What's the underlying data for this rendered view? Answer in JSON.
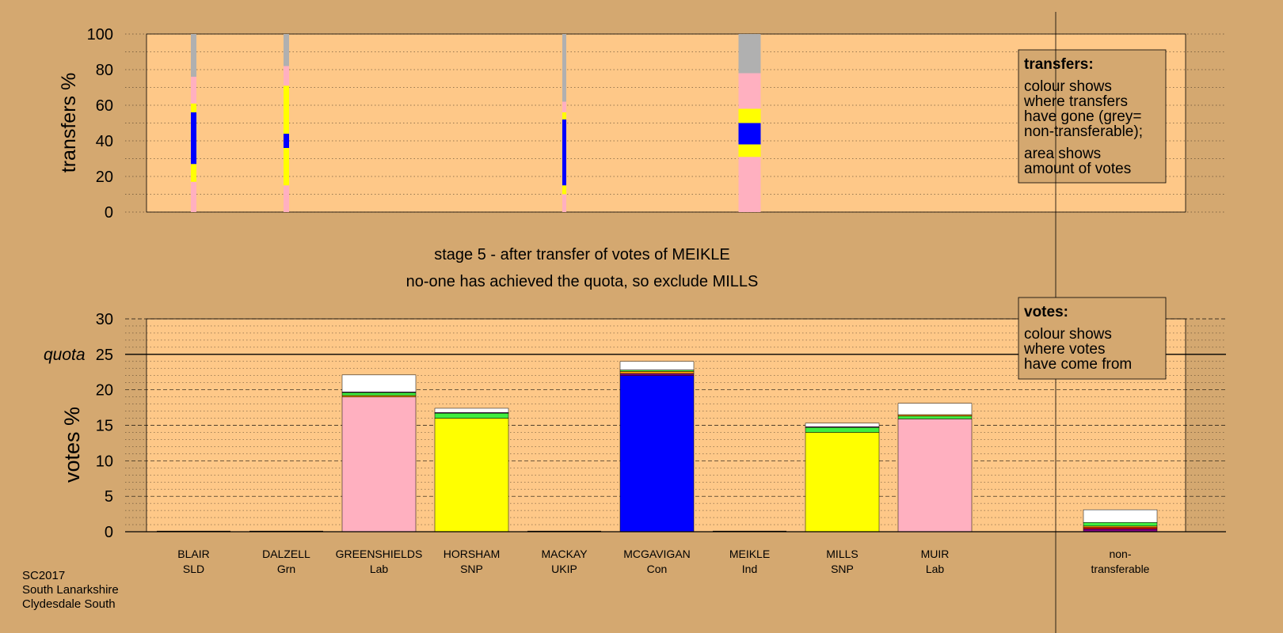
{
  "colors": {
    "background": "#d4a870",
    "panel": "#fec888",
    "legend_box": "#d4a870",
    "SNP": "#ffff00",
    "Lab": "#ffb0c0",
    "Con": "#0000ff",
    "Grn": "#40ee40",
    "SLD": "#ffa000",
    "UKIP": "#800080",
    "Ind": "#ff0000",
    "nontransferable": "#b0b0b0",
    "new_transfer": "#ffffff"
  },
  "chart_data": [
    {
      "type": "bar",
      "id": "transfers",
      "ylabel": "transfers %",
      "ylim": [
        0,
        100
      ],
      "yticks": [
        0,
        20,
        40,
        60,
        80,
        100
      ],
      "grid": true,
      "columns": [
        {
          "candidate": "BLAIR",
          "segments": [
            {
              "color": "Lab",
              "value": 17
            },
            {
              "color": "SNP",
              "value": 10
            },
            {
              "color": "Con",
              "value": 29
            },
            {
              "color": "SNP",
              "value": 5
            },
            {
              "color": "Lab",
              "value": 15
            },
            {
              "color": "nontransferable",
              "value": 24
            }
          ]
        },
        {
          "candidate": "DALZELL",
          "segments": [
            {
              "color": "Lab",
              "value": 15
            },
            {
              "color": "SNP",
              "value": 21
            },
            {
              "color": "Con",
              "value": 8
            },
            {
              "color": "SNP",
              "value": 27
            },
            {
              "color": "Lab",
              "value": 11
            },
            {
              "color": "nontransferable",
              "value": 18
            }
          ]
        },
        {
          "candidate": "MACKAY",
          "segments": [
            {
              "color": "Lab",
              "value": 10
            },
            {
              "color": "SNP",
              "value": 5
            },
            {
              "color": "Con",
              "value": 37
            },
            {
              "color": "SNP",
              "value": 4
            },
            {
              "color": "Lab",
              "value": 6
            },
            {
              "color": "nontransferable",
              "value": 38
            }
          ]
        },
        {
          "candidate": "MEIKLE",
          "segments": [
            {
              "color": "Lab",
              "value": 31
            },
            {
              "color": "SNP",
              "value": 7
            },
            {
              "color": "Con",
              "value": 12
            },
            {
              "color": "SNP",
              "value": 8
            },
            {
              "color": "Lab",
              "value": 20
            },
            {
              "color": "nontransferable",
              "value": 22
            }
          ]
        }
      ],
      "legend": {
        "title": "transfers:",
        "lines1": [
          "colour shows",
          "where transfers",
          "have gone (grey=",
          "non-transferable);"
        ],
        "lines2": [
          "area shows",
          "amount of votes"
        ]
      }
    },
    {
      "type": "bar",
      "id": "votes",
      "ylabel": "votes %",
      "ylim": [
        0,
        30
      ],
      "yticks": [
        0,
        5,
        10,
        15,
        20,
        25,
        30
      ],
      "quota": 25,
      "quota_label": "quota",
      "grid": true,
      "categories": [
        {
          "name": "BLAIR",
          "party": "SLD"
        },
        {
          "name": "DALZELL",
          "party": "Grn"
        },
        {
          "name": "GREENSHIELDS",
          "party": "Lab"
        },
        {
          "name": "HORSHAM",
          "party": "SNP"
        },
        {
          "name": "MACKAY",
          "party": "UKIP"
        },
        {
          "name": "MCGAVIGAN",
          "party": "Con"
        },
        {
          "name": "MEIKLE",
          "party": "Ind"
        },
        {
          "name": "MILLS",
          "party": "SNP"
        },
        {
          "name": "MUIR",
          "party": "Lab"
        },
        {
          "name": "",
          "party": ""
        },
        {
          "name": "non-",
          "party": "transferable"
        }
      ],
      "stacks": [
        [],
        [],
        [
          {
            "color": "Lab",
            "value": 19.0
          },
          {
            "color": "SLD",
            "value": 0.2
          },
          {
            "color": "Grn",
            "value": 0.4
          },
          {
            "color": "UKIP",
            "value": 0.1
          },
          {
            "color": "new_transfer",
            "value": 2.4
          }
        ],
        [
          {
            "color": "SNP",
            "value": 16.0
          },
          {
            "color": "Grn",
            "value": 0.7
          },
          {
            "color": "UKIP",
            "value": 0.1
          },
          {
            "color": "new_transfer",
            "value": 0.6
          }
        ],
        [],
        [
          {
            "color": "Con",
            "value": 22.0
          },
          {
            "color": "UKIP",
            "value": 0.3
          },
          {
            "color": "SLD",
            "value": 0.3
          },
          {
            "color": "Grn",
            "value": 0.2
          },
          {
            "color": "new_transfer",
            "value": 1.2
          }
        ],
        [],
        [
          {
            "color": "SNP",
            "value": 14.0
          },
          {
            "color": "Grn",
            "value": 0.7
          },
          {
            "color": "UKIP",
            "value": 0.1
          },
          {
            "color": "new_transfer",
            "value": 0.5
          }
        ],
        [
          {
            "color": "Lab",
            "value": 15.9
          },
          {
            "color": "Grn",
            "value": 0.4
          },
          {
            "color": "SLD",
            "value": 0.2
          },
          {
            "color": "new_transfer",
            "value": 1.6
          }
        ],
        [],
        [
          {
            "color": "UKIP",
            "value": 0.4
          },
          {
            "color": "Ind",
            "value": 0.2
          },
          {
            "color": "SLD",
            "value": 0.2
          },
          {
            "color": "Grn",
            "value": 0.5
          },
          {
            "color": "new_transfer",
            "value": 1.8
          }
        ]
      ],
      "legend": {
        "title": "votes:",
        "lines": [
          "colour shows",
          "where votes",
          "have come from"
        ]
      }
    }
  ],
  "stage_text": "stage 5 - after transfer of votes of MEIKLE",
  "status_text": "no-one has achieved the quota, so exclude MILLS",
  "footer": [
    "SC2017",
    "South Lanarkshire",
    "Clydesdale South"
  ]
}
